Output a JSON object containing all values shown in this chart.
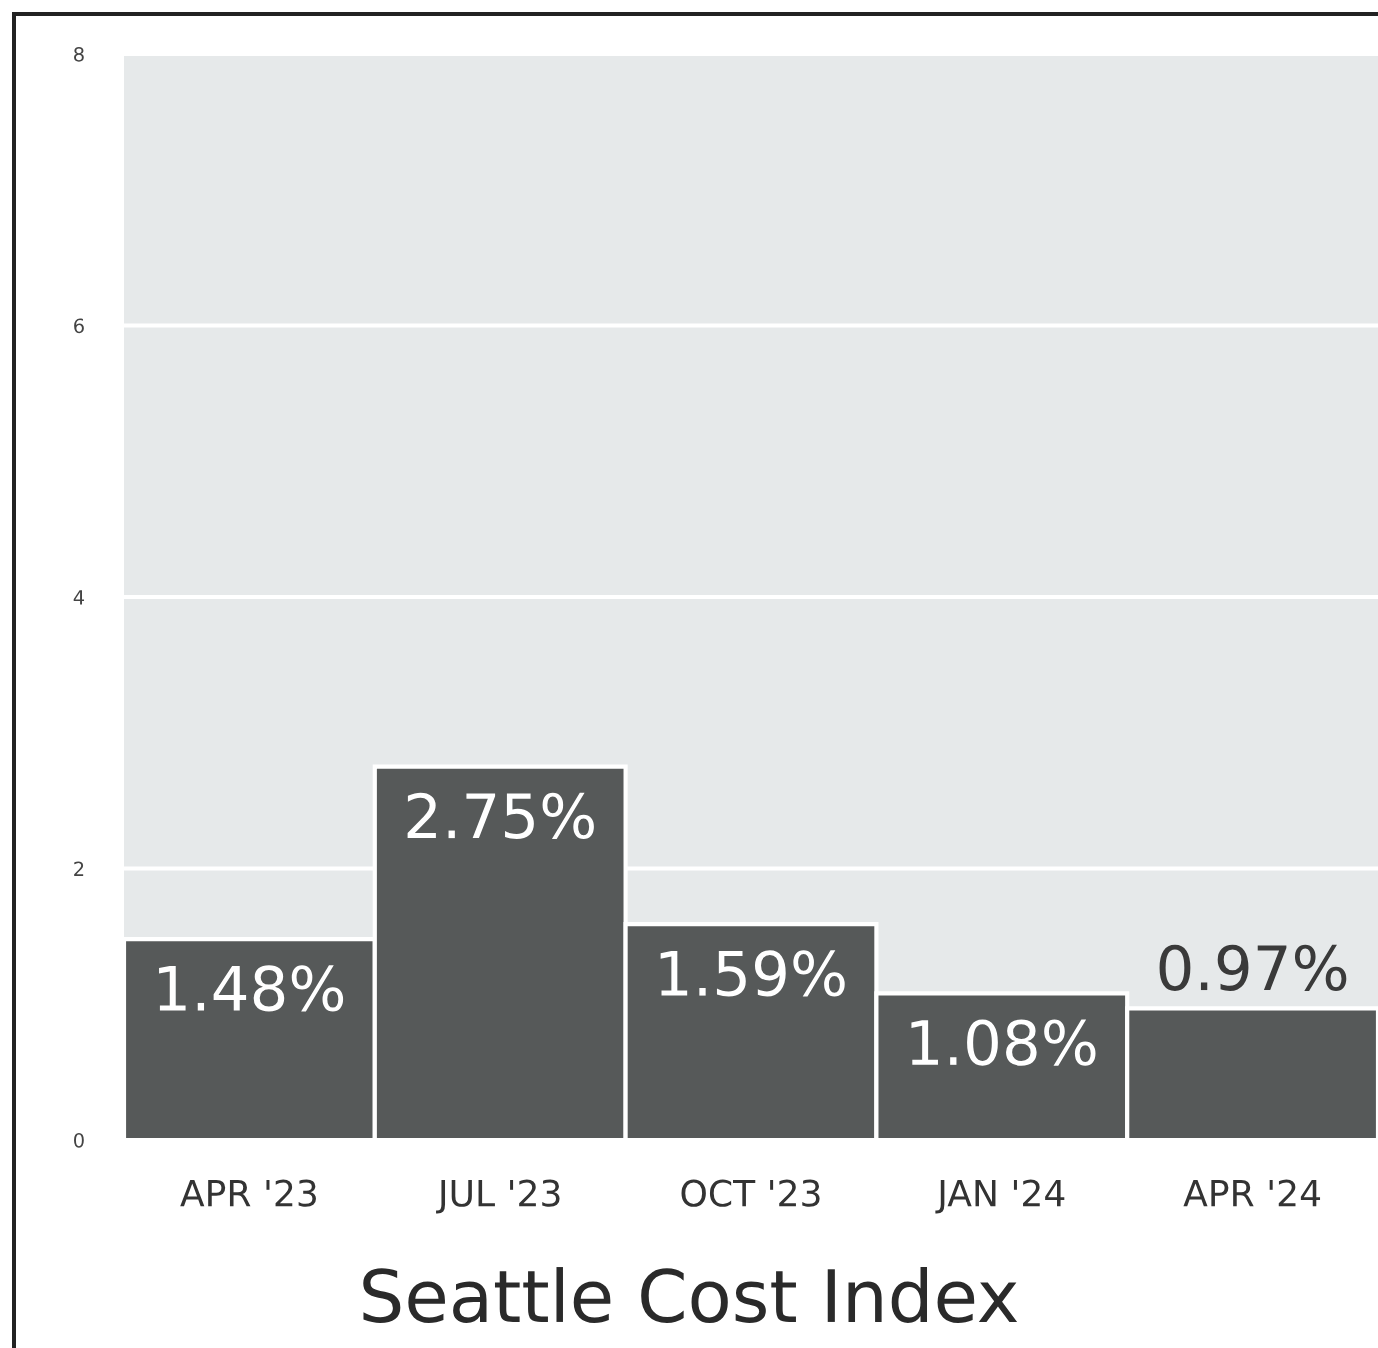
{
  "chart_data": {
    "type": "bar",
    "title": "Seattle Cost Index",
    "categories": [
      "APR '23",
      "JUL '23",
      "OCT '23",
      "JAN '24",
      "APR '24"
    ],
    "values": [
      1.48,
      2.75,
      1.59,
      1.08,
      0.97
    ],
    "value_labels": [
      "1.48%",
      "2.75%",
      "1.59%",
      "1.08%",
      "0.97%"
    ],
    "color": "#565959",
    "ylim": [
      0,
      8
    ],
    "yticks": [
      0,
      2,
      4,
      6,
      8
    ],
    "grid": "y"
  }
}
